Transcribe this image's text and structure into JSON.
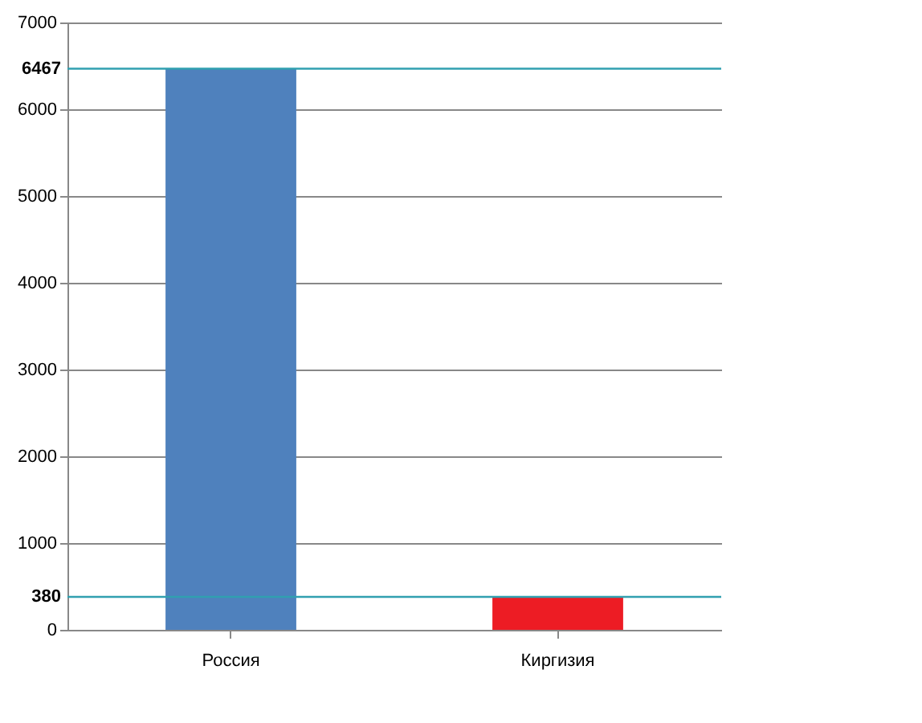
{
  "chart_data": {
    "type": "bar",
    "categories": [
      "Россия",
      "Киргизия"
    ],
    "values": [
      6467,
      380
    ],
    "colors": [
      "#4f81bd",
      "#ed1c24"
    ],
    "ylim": [
      0,
      7000
    ],
    "yticks": [
      0,
      1000,
      2000,
      3000,
      4000,
      5000,
      6000,
      7000
    ],
    "grid": "y",
    "ref_lines": [
      {
        "axis": "y",
        "value": 6467,
        "label": "6467",
        "color": "#31a0b0"
      },
      {
        "axis": "y",
        "value": 380,
        "label": "380",
        "color": "#31a0b0"
      }
    ]
  }
}
